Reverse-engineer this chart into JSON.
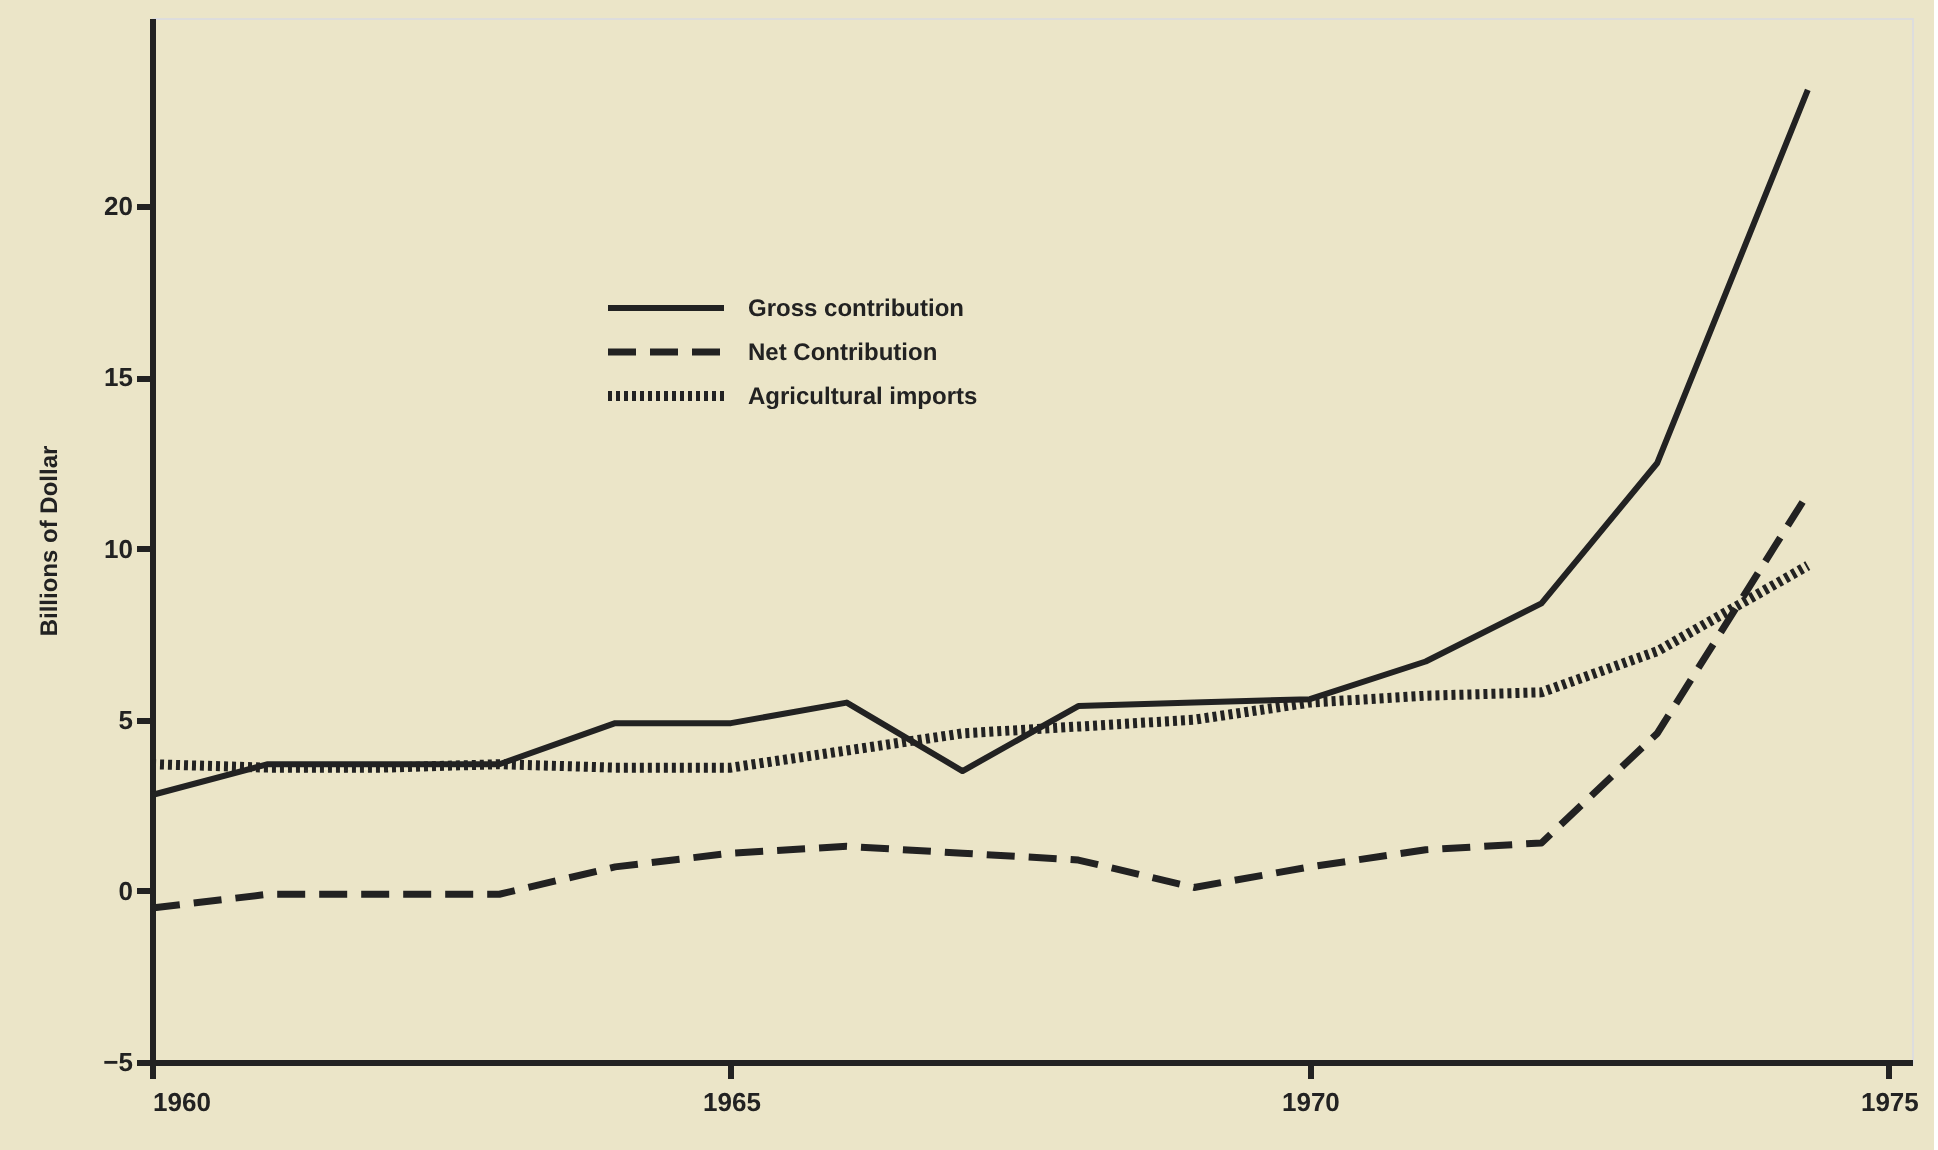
{
  "chart_data": {
    "type": "line",
    "ylabel": "Billions of Dollar",
    "x": [
      1960,
      1961,
      1962,
      1963,
      1964,
      1965,
      1966,
      1967,
      1968,
      1969,
      1970,
      1971,
      1972,
      1973,
      1974.3
    ],
    "series": [
      {
        "name": "Gross contribution",
        "color": "#222222",
        "line_style": "solid",
        "values": [
          2.8,
          3.7,
          3.7,
          3.7,
          4.9,
          4.9,
          5.5,
          3.5,
          5.4,
          5.5,
          5.6,
          6.7,
          8.4,
          12.5,
          23.4
        ]
      },
      {
        "name": "Net Contribution",
        "color": "#222222",
        "line_style": "dashed",
        "values": [
          -0.5,
          -0.1,
          -0.1,
          -0.1,
          0.7,
          1.1,
          1.3,
          1.1,
          0.9,
          0.1,
          0.7,
          1.2,
          1.4,
          4.6,
          11.6
        ]
      },
      {
        "name": "Agricultural imports",
        "color": "#222222",
        "line_style": "dotted",
        "values": [
          3.7,
          3.6,
          3.6,
          3.7,
          3.6,
          3.6,
          4.1,
          4.6,
          4.8,
          5.0,
          5.5,
          5.7,
          5.8,
          7.0,
          9.5
        ]
      }
    ],
    "xlim": [
      1960,
      1975.2
    ],
    "xticks": [
      1960,
      1965,
      1970,
      1975
    ],
    "ylim": [
      -5,
      25.5
    ],
    "yticks": [
      -5,
      0,
      5,
      10,
      15,
      20
    ],
    "legend": "top",
    "grid": false,
    "marker": "none"
  }
}
